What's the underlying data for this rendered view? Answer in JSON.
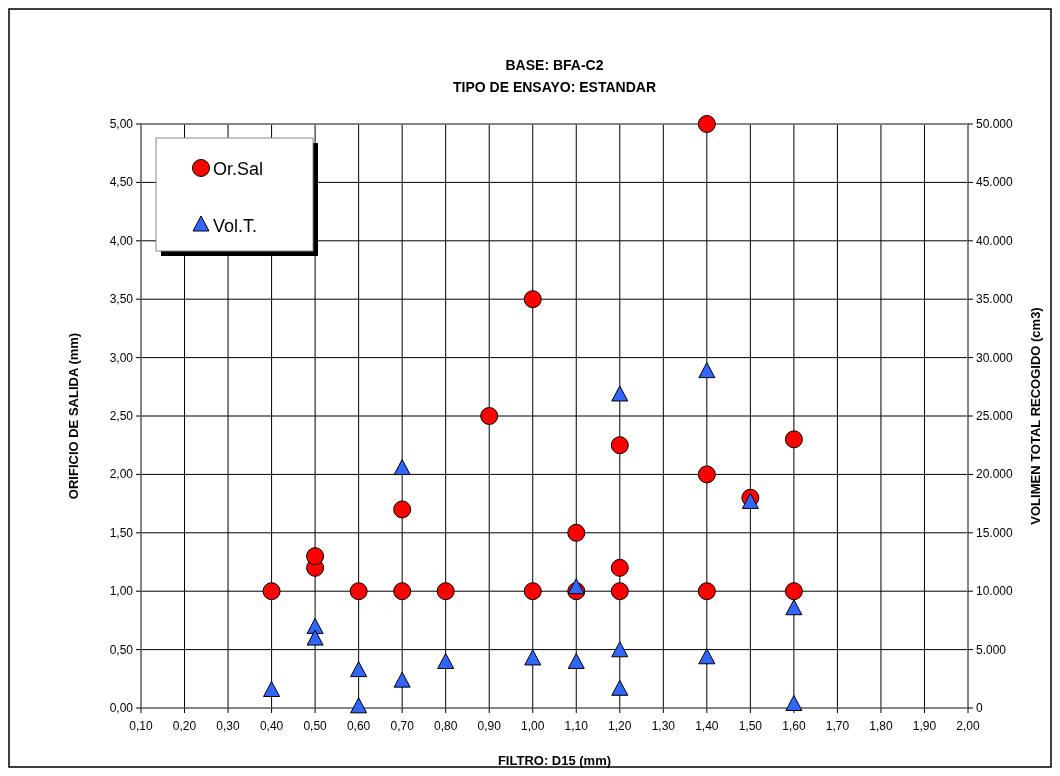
{
  "chart_data": {
    "type": "scatter",
    "title": "BASE: BFA-C2",
    "subtitle": "TIPO DE ENSAYO: ESTANDAR",
    "xlabel": "FILTRO: D15 (mm)",
    "ylabel": "ORIFICIO DE SALIDA (mm)",
    "y2label": "VOLIMEN TOTAL RECOGIDO (cm3)",
    "xlim": [
      0.1,
      2.0
    ],
    "xticks": [
      {
        "value": 0.1,
        "label": "0,10"
      },
      {
        "value": 0.2,
        "label": "0,20"
      },
      {
        "value": 0.3,
        "label": "0,30"
      },
      {
        "value": 0.4,
        "label": "0,40"
      },
      {
        "value": 0.5,
        "label": "0,50"
      },
      {
        "value": 0.6,
        "label": "0,60"
      },
      {
        "value": 0.7,
        "label": "0,70"
      },
      {
        "value": 0.8,
        "label": "0,80"
      },
      {
        "value": 0.9,
        "label": "0,90"
      },
      {
        "value": 1.0,
        "label": "1,00"
      },
      {
        "value": 1.1,
        "label": "1,10"
      },
      {
        "value": 1.2,
        "label": "1,20"
      },
      {
        "value": 1.3,
        "label": "1,30"
      },
      {
        "value": 1.4,
        "label": "1,40"
      },
      {
        "value": 1.5,
        "label": "1,50"
      },
      {
        "value": 1.6,
        "label": "1,60"
      },
      {
        "value": 1.7,
        "label": "1,70"
      },
      {
        "value": 1.8,
        "label": "1,80"
      },
      {
        "value": 1.9,
        "label": "1,90"
      },
      {
        "value": 2.0,
        "label": "2,00"
      }
    ],
    "ylim": [
      0,
      5
    ],
    "yticks": [
      {
        "value": 0,
        "label": "0,00"
      },
      {
        "value": 0.5,
        "label": "0,50"
      },
      {
        "value": 1,
        "label": "1,00"
      },
      {
        "value": 1.5,
        "label": "1,50"
      },
      {
        "value": 2,
        "label": "2,00"
      },
      {
        "value": 2.5,
        "label": "2,50"
      },
      {
        "value": 3,
        "label": "3,00"
      },
      {
        "value": 3.5,
        "label": "3,50"
      },
      {
        "value": 4,
        "label": "4,00"
      },
      {
        "value": 4.5,
        "label": "4,50"
      },
      {
        "value": 5,
        "label": "5,00"
      }
    ],
    "y2lim": [
      0,
      50000
    ],
    "y2ticks": [
      0,
      {
        "value": 5000,
        "label": "5.000"
      },
      {
        "value": 10000,
        "label": "10.000"
      },
      {
        "value": 15000,
        "label": "15.000"
      },
      {
        "value": 20000,
        "label": "20.000"
      },
      {
        "value": 25000,
        "label": "25.000"
      },
      {
        "value": 30000,
        "label": "30.000"
      },
      {
        "value": 35000,
        "label": "35.000"
      },
      {
        "value": 40000,
        "label": "40.000"
      },
      {
        "value": 45000,
        "label": "45.000"
      },
      {
        "value": 50000,
        "label": "50.000"
      }
    ],
    "grid": true,
    "legend": "top left",
    "series": [
      {
        "name": "Or.Sal",
        "color": "#ff0000",
        "marker": "circle",
        "x": [
          0.4,
          0.5,
          0.5,
          0.6,
          0.7,
          0.7,
          0.8,
          0.9,
          1.0,
          1.0,
          1.1,
          1.1,
          1.2,
          1.2,
          1.2,
          1.4,
          1.4,
          1.4,
          1.5,
          1.6,
          1.6
        ],
        "values": [
          1.0,
          1.2,
          1.3,
          1.0,
          1.0,
          1.7,
          1.0,
          2.5,
          1.0,
          3.5,
          1.0,
          1.5,
          1.0,
          1.2,
          2.25,
          1.0,
          2.0,
          5.0,
          1.8,
          1.0,
          2.3
        ]
      },
      {
        "name": "Vol.T.",
        "color": "#3366ff",
        "marker": "triangle",
        "axis": "y2",
        "x": [
          0.4,
          0.5,
          0.5,
          0.6,
          0.6,
          0.7,
          0.7,
          0.8,
          1.0,
          1.1,
          1.1,
          1.2,
          1.2,
          1.2,
          1.4,
          1.4,
          1.5,
          1.6,
          1.6
        ],
        "values": [
          1500,
          6900,
          5900,
          3200,
          100,
          2300,
          20500,
          3900,
          4200,
          3900,
          10300,
          4900,
          1600,
          26800,
          4300,
          28800,
          17600,
          8500,
          300
        ]
      }
    ]
  }
}
